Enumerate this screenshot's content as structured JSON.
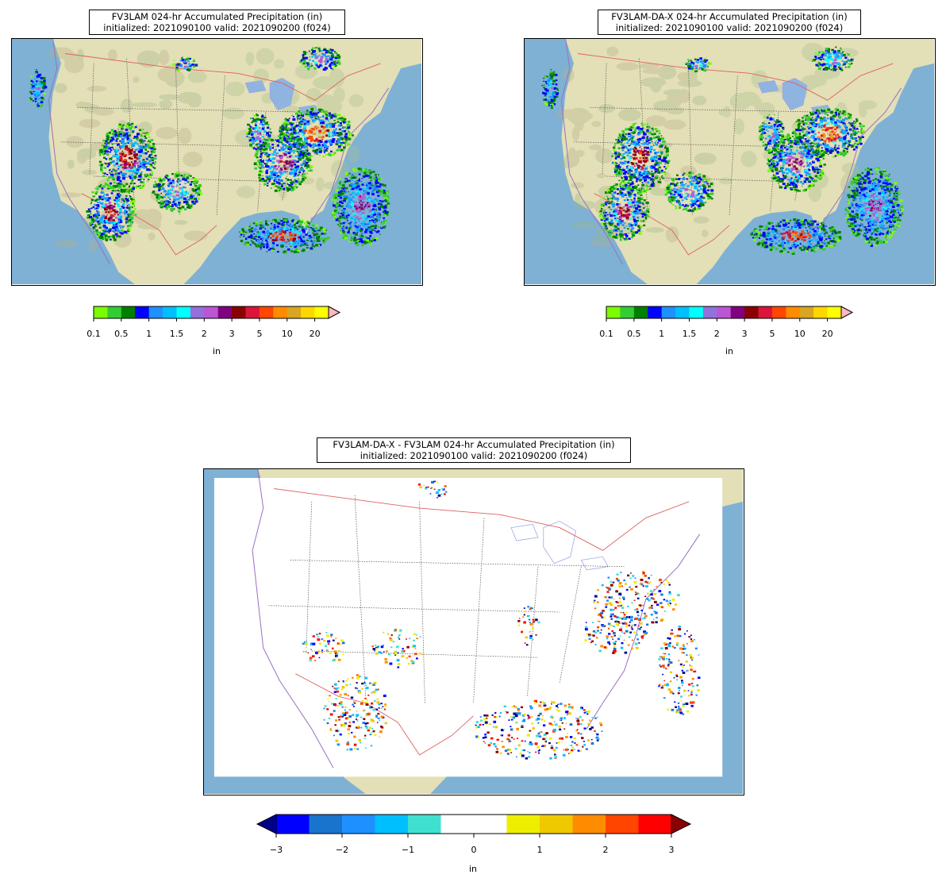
{
  "panels": [
    {
      "title_line1": "FV3LAM 024-hr Accumulated Precipitation (in)",
      "title_line2": "initialized: 2021090100 valid: 2021090200 (f024)"
    },
    {
      "title_line1": "FV3LAM-DA-X 024-hr Accumulated Precipitation (in)",
      "title_line2": "initialized: 2021090100 valid: 2021090200 (f024)"
    },
    {
      "title_line1": "FV3LAM-DA-X - FV3LAM 024-hr Accumulated Precipitation (in)",
      "title_line2": "initialized: 2021090100 valid: 2021090200 (f024)"
    }
  ],
  "precip_colorbar": {
    "units_label": "in",
    "tick_labels": [
      "0.1",
      "0.5",
      "1",
      "1.5",
      "2",
      "3",
      "5",
      "10",
      "20"
    ],
    "colors": [
      "#7cfc00",
      "#32cd32",
      "#008000",
      "#0000ff",
      "#1e90ff",
      "#00bfff",
      "#00ffff",
      "#9370db",
      "#ba55d3",
      "#800080",
      "#8b0000",
      "#dc143c",
      "#ff4500",
      "#ff8c00",
      "#daa520",
      "#ffd700",
      "#ffff00",
      "#ffb6c1"
    ]
  },
  "diff_colorbar": {
    "units_label": "in",
    "tick_labels": [
      "−3",
      "−2",
      "−1",
      "0",
      "1",
      "2",
      "3"
    ],
    "colors": [
      "#00008b",
      "#0000ff",
      "#1874cd",
      "#1e90ff",
      "#00bfff",
      "#40e0d0",
      "#ffffff",
      "#ffffff",
      "#eeee00",
      "#eec900",
      "#ff8c00",
      "#ff4500",
      "#ff0000",
      "#8b0000"
    ]
  },
  "colors": {
    "ocean": "#7eb1d4",
    "land": "#e3dfb6",
    "border_state": "#555555",
    "border_country": "#e06060",
    "coastline": "#9a70c0",
    "lakes": "#8fb4e0"
  }
}
